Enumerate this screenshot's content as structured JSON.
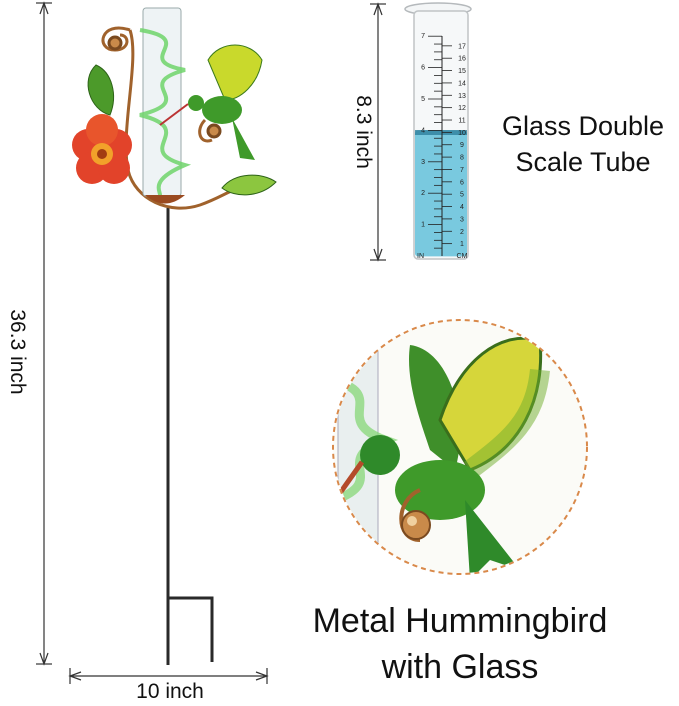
{
  "dimensions": {
    "height_label": "36.3 inch",
    "width_label": "10 inch",
    "tube_height_label": "8.3 inch"
  },
  "tube": {
    "title_line1": "Glass Double",
    "title_line2": "Scale Tube",
    "inch_labels": [
      "1",
      "2",
      "3",
      "4",
      "5",
      "6",
      "7"
    ],
    "cm_labels": [
      "1",
      "2",
      "3",
      "4",
      "5",
      "6",
      "7",
      "8",
      "9",
      "10",
      "11",
      "12",
      "13",
      "14",
      "15",
      "16",
      "17"
    ],
    "inch_unit": "IN",
    "cm_unit": "CM",
    "water_color": "#6cc3dc",
    "water_level_inch": 4
  },
  "detail": {
    "title_line1": "Metal Hummingbird",
    "title_line2": "with Glass",
    "circle_border_color": "#d9894a"
  }
}
